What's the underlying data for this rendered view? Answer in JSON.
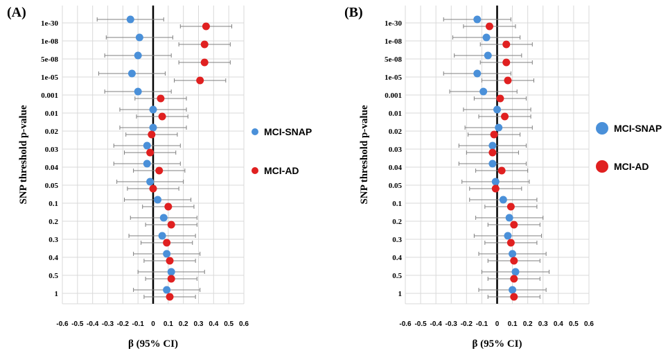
{
  "colors": {
    "snap": "#4a90d9",
    "ad": "#e02020",
    "grid": "#d9d9d9",
    "whisker": "#7f7f7f"
  },
  "legend": [
    {
      "name": "MCI-SNAP",
      "color": "#4a90d9"
    },
    {
      "name": "MCI-AD",
      "color": "#e02020"
    }
  ],
  "chart_data": [
    {
      "type": "forest",
      "panel_label": "(A)",
      "xlabel": "β (95% CI)",
      "ylabel": "SNP threshold p-value",
      "xlim": [
        -0.6,
        0.6
      ],
      "xticks": [
        "-0.6",
        "-0.5",
        "-0.4",
        "-0.3",
        "-0.2",
        "-0.1",
        "0",
        "0.1",
        "0.2",
        "0.3",
        "0.4",
        "0.5",
        "0.6"
      ],
      "categories": [
        "1e-30",
        "1e-08",
        "5e-08",
        "1e-05",
        "0.001",
        "0.01",
        "0.02",
        "0.03",
        "0.04",
        "0.05",
        "0.1",
        "0.2",
        "0.3",
        "0.4",
        "0.5",
        "1"
      ],
      "legend_position": "right",
      "series": [
        {
          "name": "MCI-SNAP",
          "color": "#4a90d9",
          "beta": [
            -0.15,
            -0.09,
            -0.1,
            -0.14,
            -0.1,
            0.0,
            0.0,
            -0.04,
            -0.04,
            -0.02,
            0.03,
            0.07,
            0.06,
            0.09,
            0.12,
            0.09
          ],
          "lower": [
            -0.37,
            -0.31,
            -0.32,
            -0.36,
            -0.32,
            -0.22,
            -0.22,
            -0.26,
            -0.26,
            -0.24,
            -0.19,
            -0.15,
            -0.16,
            -0.13,
            -0.1,
            -0.13
          ],
          "upper": [
            0.07,
            0.13,
            0.12,
            0.08,
            0.12,
            0.22,
            0.22,
            0.18,
            0.18,
            0.2,
            0.25,
            0.29,
            0.28,
            0.31,
            0.34,
            0.31
          ]
        },
        {
          "name": "MCI-AD",
          "color": "#e02020",
          "beta": [
            0.35,
            0.34,
            0.34,
            0.31,
            0.05,
            0.06,
            -0.01,
            -0.02,
            0.04,
            0.0,
            0.1,
            0.12,
            0.09,
            0.11,
            0.12,
            0.11
          ],
          "lower": [
            0.18,
            0.17,
            0.17,
            0.14,
            -0.12,
            -0.11,
            -0.18,
            -0.19,
            -0.13,
            -0.17,
            -0.07,
            -0.05,
            -0.08,
            -0.06,
            -0.05,
            -0.06
          ],
          "upper": [
            0.52,
            0.51,
            0.51,
            0.48,
            0.22,
            0.23,
            0.16,
            0.15,
            0.21,
            0.17,
            0.27,
            0.29,
            0.26,
            0.28,
            0.29,
            0.28
          ]
        }
      ]
    },
    {
      "type": "forest",
      "panel_label": "(B)",
      "xlabel": "β (95% CI)",
      "ylabel": "SNP threshold p-value",
      "xlim": [
        -0.6,
        0.6
      ],
      "xticks": [
        "-0.6",
        "-0.5",
        "-0.4",
        "-0.3",
        "-0.2",
        "-0.1",
        "0",
        "0.1",
        "0.2",
        "0.3",
        "0.4",
        "0.5",
        "0.6"
      ],
      "categories": [
        "1e-30",
        "1e-08",
        "5e-08",
        "1e-05",
        "0.001",
        "0.01",
        "0.02",
        "0.03",
        "0.04",
        "0.05",
        "0.1",
        "0.2",
        "0.3",
        "0.4",
        "0.5",
        "1"
      ],
      "legend_position": "right",
      "series": [
        {
          "name": "MCI-SNAP",
          "color": "#4a90d9",
          "beta": [
            -0.13,
            -0.07,
            -0.06,
            -0.13,
            -0.09,
            0.0,
            0.01,
            -0.03,
            -0.03,
            -0.01,
            0.04,
            0.08,
            0.07,
            0.1,
            0.12,
            0.1
          ],
          "lower": [
            -0.35,
            -0.29,
            -0.28,
            -0.35,
            -0.31,
            -0.22,
            -0.21,
            -0.25,
            -0.25,
            -0.23,
            -0.18,
            -0.14,
            -0.15,
            -0.12,
            -0.1,
            -0.12
          ],
          "upper": [
            0.09,
            0.15,
            0.16,
            0.09,
            0.13,
            0.22,
            0.23,
            0.19,
            0.19,
            0.21,
            0.26,
            0.3,
            0.29,
            0.32,
            0.34,
            0.32
          ]
        },
        {
          "name": "MCI-AD",
          "color": "#e02020",
          "beta": [
            -0.05,
            0.06,
            0.06,
            0.07,
            0.02,
            0.05,
            -0.02,
            -0.03,
            0.03,
            -0.01,
            0.09,
            0.11,
            0.09,
            0.11,
            0.11,
            0.11
          ],
          "lower": [
            -0.22,
            -0.11,
            -0.11,
            -0.1,
            -0.15,
            -0.12,
            -0.19,
            -0.2,
            -0.14,
            -0.18,
            -0.08,
            -0.06,
            -0.08,
            -0.06,
            -0.06,
            -0.06
          ],
          "upper": [
            0.12,
            0.23,
            0.23,
            0.24,
            0.19,
            0.22,
            0.15,
            0.14,
            0.2,
            0.16,
            0.26,
            0.28,
            0.26,
            0.28,
            0.28,
            0.28
          ]
        }
      ]
    }
  ]
}
